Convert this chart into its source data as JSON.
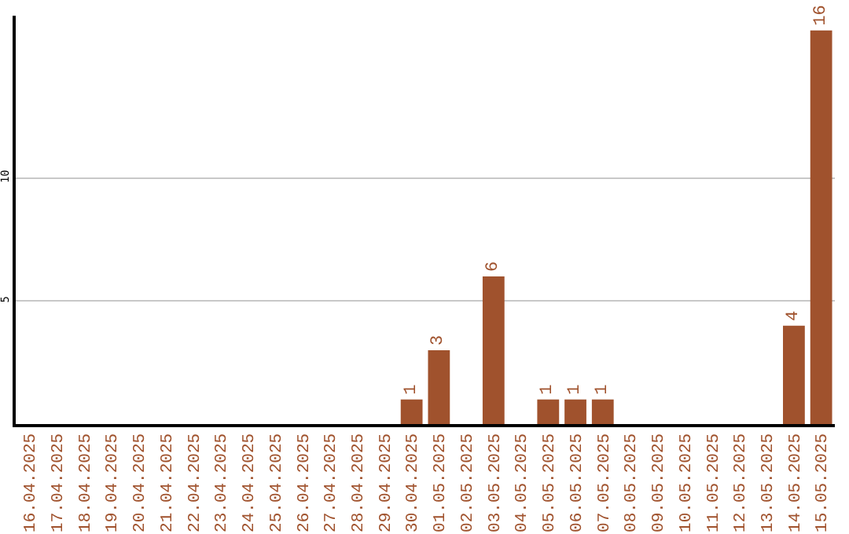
{
  "chart_data": {
    "type": "bar",
    "categories": [
      "16.04.2025",
      "17.04.2025",
      "18.04.2025",
      "19.04.2025",
      "20.04.2025",
      "21.04.2025",
      "22.04.2025",
      "23.04.2025",
      "24.04.2025",
      "25.04.2025",
      "26.04.2025",
      "27.04.2025",
      "28.04.2025",
      "29.04.2025",
      "30.04.2025",
      "01.05.2025",
      "02.05.2025",
      "03.05.2025",
      "04.05.2025",
      "05.05.2025",
      "06.05.2025",
      "07.05.2025",
      "08.05.2025",
      "09.05.2025",
      "10.05.2025",
      "11.05.2025",
      "12.05.2025",
      "13.05.2025",
      "14.05.2025",
      "15.05.2025"
    ],
    "values": [
      0,
      0,
      0,
      0,
      0,
      0,
      0,
      0,
      0,
      0,
      0,
      0,
      0,
      0,
      1,
      3,
      0,
      6,
      0,
      1,
      1,
      1,
      0,
      0,
      0,
      0,
      0,
      0,
      4,
      16
    ],
    "value_labels": [
      null,
      null,
      null,
      null,
      null,
      null,
      null,
      null,
      null,
      null,
      null,
      null,
      null,
      null,
      "1",
      "3",
      null,
      "6",
      null,
      "1",
      "1",
      "1",
      null,
      null,
      null,
      null,
      null,
      null,
      "4",
      "16"
    ],
    "color": "#a0522d",
    "ylim": [
      0,
      16.6
    ],
    "yticks": [
      5,
      10
    ],
    "grid": "y",
    "legend": false
  }
}
